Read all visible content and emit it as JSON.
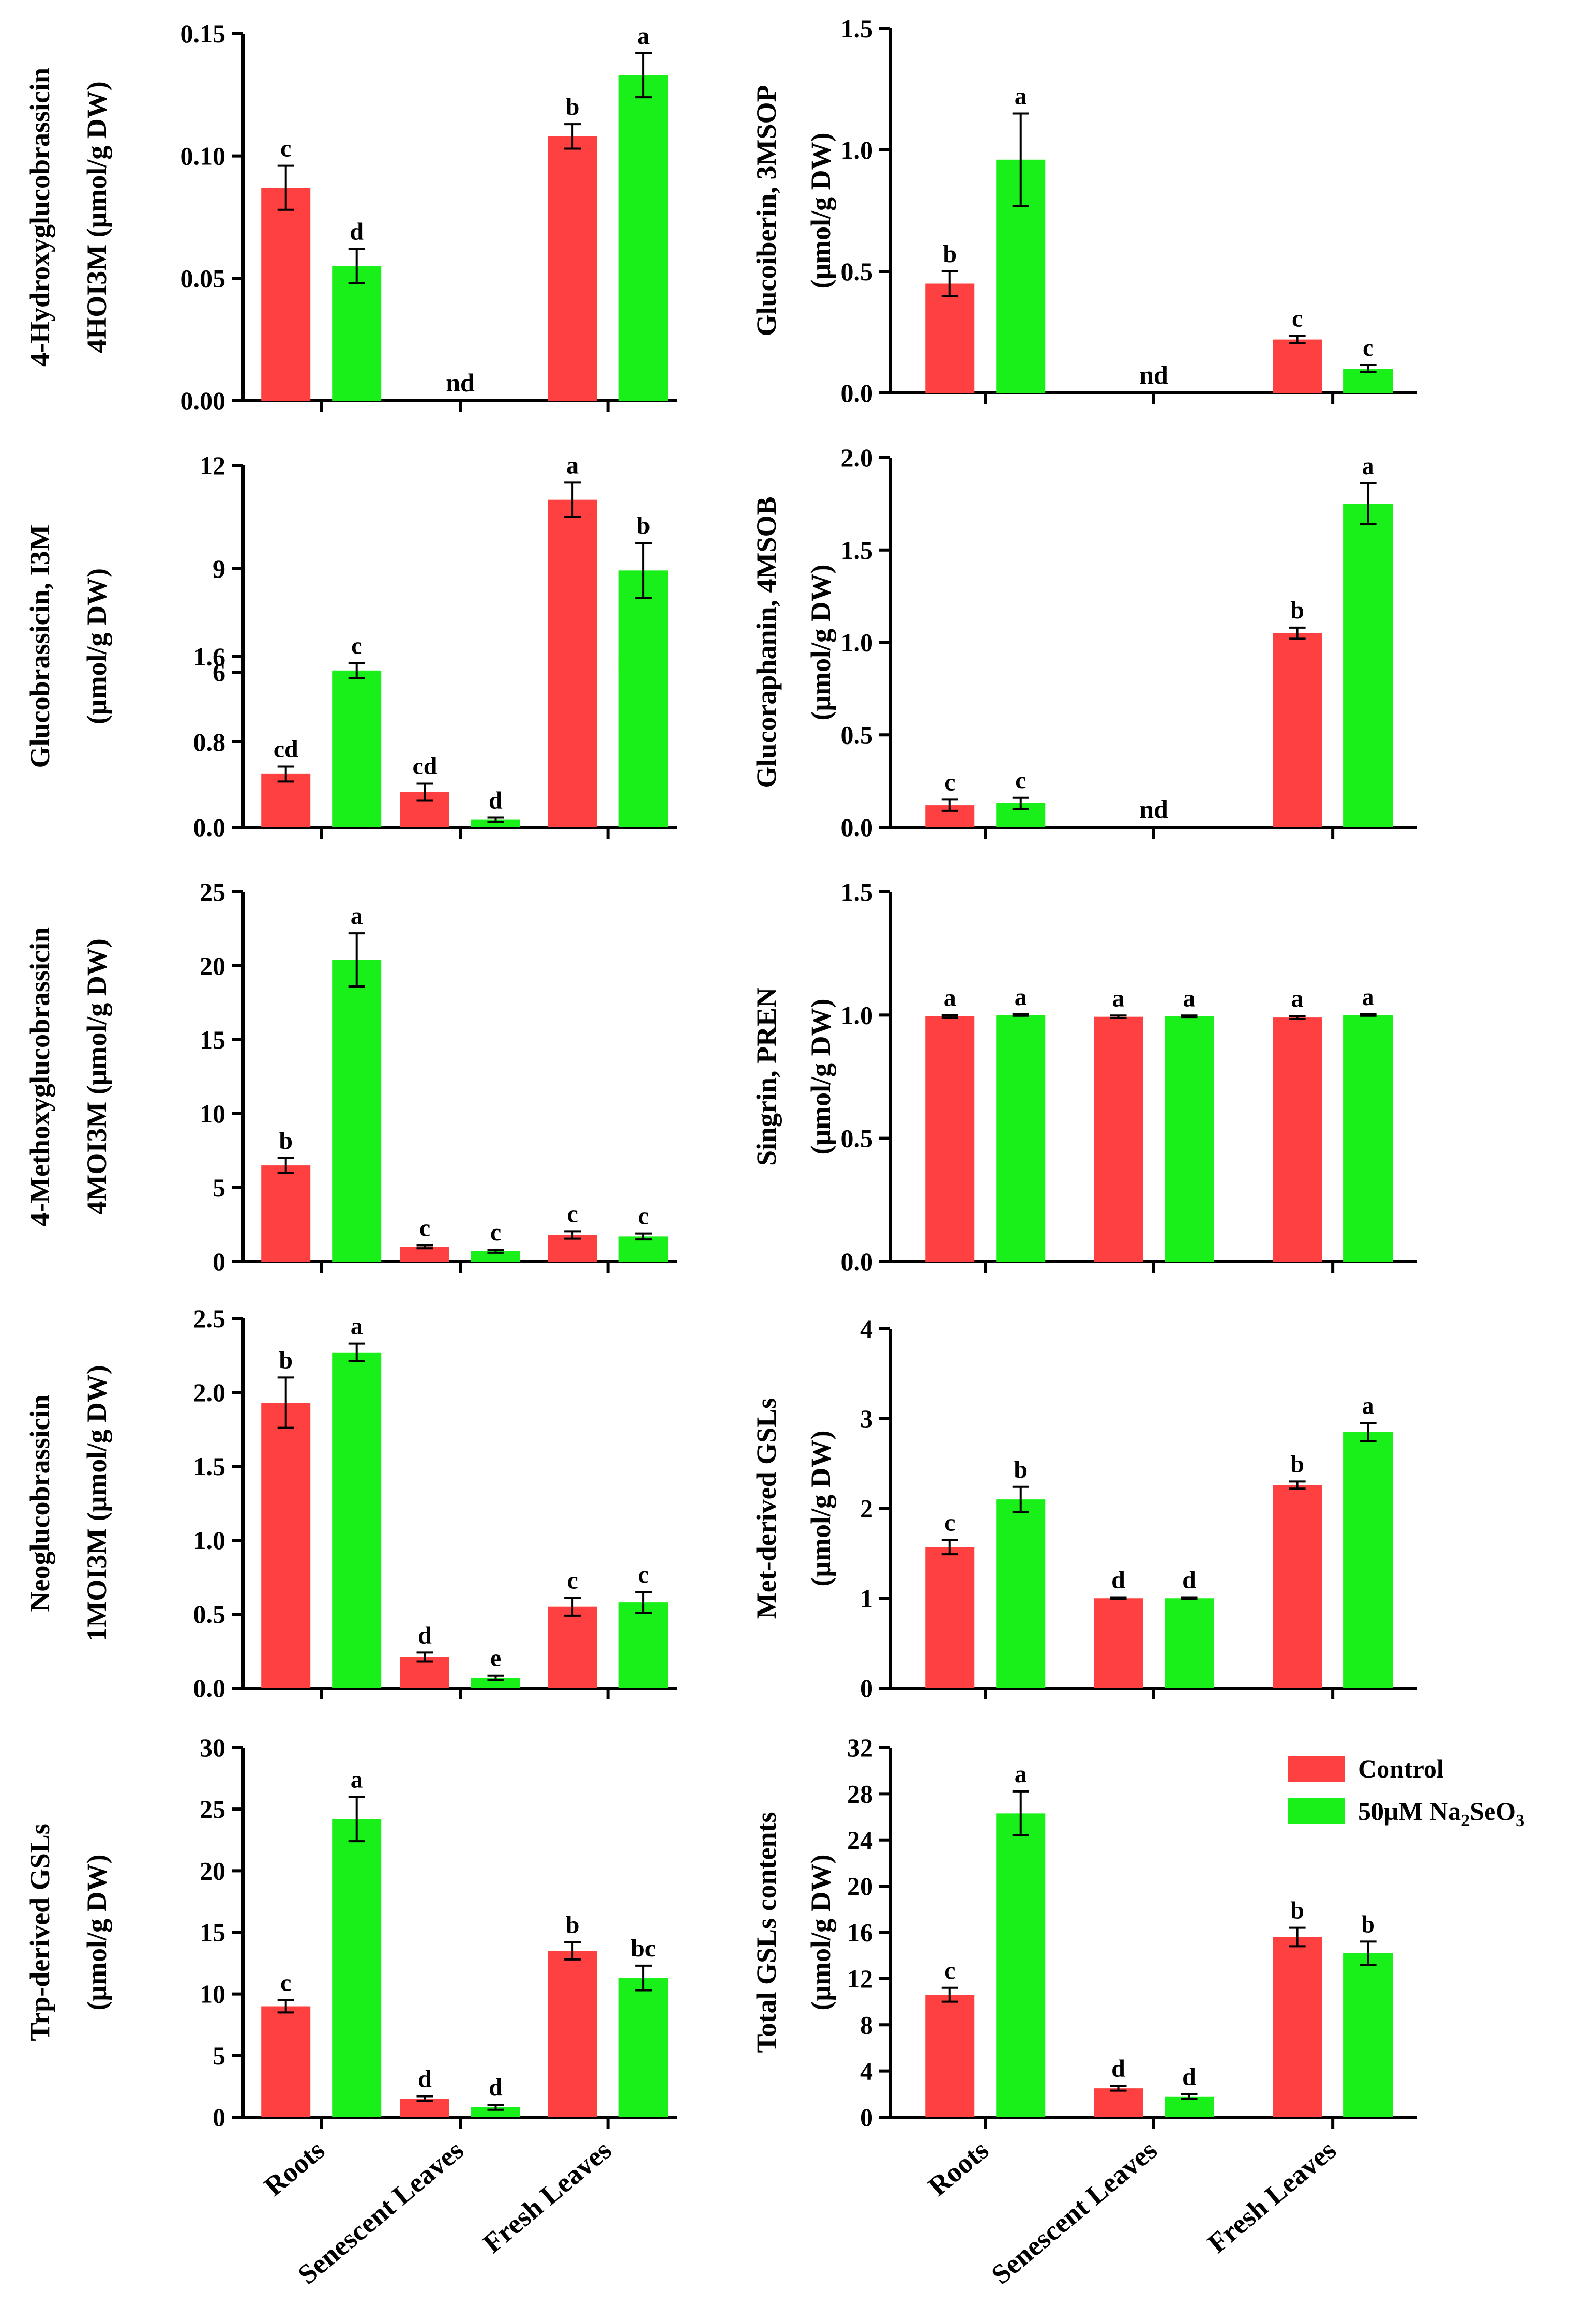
{
  "figure": {
    "categories": [
      "Roots",
      "Senescent Leaves",
      "Fresh Leaves"
    ],
    "legend": {
      "control": "Control",
      "treatment_prefix": "50μM Na",
      "treatment_sub1": "2",
      "treatment_mid": "SeO",
      "treatment_sub2": "3"
    },
    "colors": {
      "control": "#ff4040",
      "treatment": "#19ef19"
    }
  },
  "chart_data": [
    {
      "type": "bar",
      "id": "p1",
      "ylabel_lines": [
        "4-Hydroxyglucobrassicin",
        "4HOI3M (μmol/g DW)"
      ],
      "ylim": [
        0,
        0.15
      ],
      "yticks": [
        "0.00",
        "0.05",
        "0.10",
        "0.15"
      ],
      "series": [
        {
          "name": "Control",
          "values": [
            0.087,
            null,
            0.108
          ],
          "errors": [
            0.009,
            null,
            0.005
          ],
          "letters": [
            "c",
            "",
            "b"
          ]
        },
        {
          "name": "50μM Na2SeO3",
          "values": [
            0.055,
            null,
            0.133
          ],
          "errors": [
            0.007,
            null,
            0.009
          ],
          "letters": [
            "d",
            "",
            "a"
          ]
        }
      ],
      "annotations": [
        {
          "category": 1,
          "text": "nd"
        }
      ]
    },
    {
      "type": "bar",
      "id": "p2",
      "ylabel_lines": [
        "Glucoiberin, 3MSOP",
        "(μmol/g DW)"
      ],
      "ylim": [
        0,
        1.5
      ],
      "yticks": [
        "0.0",
        "0.5",
        "1.0",
        "1.5"
      ],
      "series": [
        {
          "name": "Control",
          "values": [
            0.45,
            null,
            0.22
          ],
          "errors": [
            0.05,
            null,
            0.015
          ],
          "letters": [
            "b",
            "",
            "c"
          ]
        },
        {
          "name": "50μM Na2SeO3",
          "values": [
            0.96,
            null,
            0.1
          ],
          "errors": [
            0.19,
            null,
            0.015
          ],
          "letters": [
            "a",
            "",
            "c"
          ]
        }
      ],
      "annotations": [
        {
          "category": 1,
          "text": "nd"
        }
      ]
    },
    {
      "type": "bar",
      "id": "p3",
      "broken_axis": true,
      "ylabel_lines": [
        "Glucobrassicin, I3M",
        "(μmol/g DW)"
      ],
      "ylim_lower": [
        0,
        1.6
      ],
      "ylim_upper": [
        6,
        12
      ],
      "yticks": [
        "0.0",
        "0.8",
        "1.6",
        "6",
        "9",
        "12"
      ],
      "series": [
        {
          "name": "Control",
          "values": [
            0.5,
            0.33,
            11.0
          ],
          "errors": [
            0.07,
            0.08,
            0.5
          ],
          "letters": [
            "cd",
            "cd",
            "a"
          ]
        },
        {
          "name": "50μM Na2SeO3",
          "values": [
            1.47,
            0.07,
            8.95
          ],
          "errors": [
            0.07,
            0.02,
            0.8
          ],
          "letters": [
            "c",
            "d",
            "b"
          ]
        }
      ]
    },
    {
      "type": "bar",
      "id": "p4",
      "ylabel_lines": [
        "Glucoraphanin, 4MSOB",
        "(μmol/g DW)"
      ],
      "ylim": [
        0,
        2.0
      ],
      "yticks": [
        "0.0",
        "0.5",
        "1.0",
        "1.5",
        "2.0"
      ],
      "series": [
        {
          "name": "Control",
          "values": [
            0.12,
            null,
            1.05
          ],
          "errors": [
            0.03,
            null,
            0.03
          ],
          "letters": [
            "c",
            "",
            "b"
          ]
        },
        {
          "name": "50μM Na2SeO3",
          "values": [
            0.13,
            null,
            1.75
          ],
          "errors": [
            0.03,
            null,
            0.11
          ],
          "letters": [
            "c",
            "",
            "a"
          ]
        }
      ],
      "annotations": [
        {
          "category": 1,
          "text": "nd"
        }
      ]
    },
    {
      "type": "bar",
      "id": "p5",
      "ylabel_lines": [
        "4-Methoxyglucobrassicin",
        "4MOI3M (μmol/g DW)"
      ],
      "ylim": [
        0,
        25
      ],
      "yticks": [
        "0",
        "5",
        "10",
        "15",
        "20",
        "25"
      ],
      "series": [
        {
          "name": "Control",
          "values": [
            6.5,
            1.0,
            1.8
          ],
          "errors": [
            0.5,
            0.1,
            0.25
          ],
          "letters": [
            "b",
            "c",
            "c"
          ]
        },
        {
          "name": "50μM Na2SeO3",
          "values": [
            20.4,
            0.7,
            1.7
          ],
          "errors": [
            1.8,
            0.1,
            0.2
          ],
          "letters": [
            "a",
            "c",
            "c"
          ]
        }
      ]
    },
    {
      "type": "bar",
      "id": "p6",
      "ylabel_lines": [
        "Singrin, PREN",
        "(μmol/g DW)"
      ],
      "ylim": [
        0,
        1.5
      ],
      "yticks": [
        "0.0",
        "0.5",
        "1.0",
        "1.5"
      ],
      "series": [
        {
          "name": "Control",
          "values": [
            0.995,
            0.993,
            0.99
          ],
          "errors": [
            0.005,
            0.005,
            0.006
          ],
          "letters": [
            "a",
            "a",
            "a"
          ]
        },
        {
          "name": "50μM Na2SeO3",
          "values": [
            1.0,
            0.995,
            1.0
          ],
          "errors": [
            0.003,
            0.003,
            0.003
          ],
          "letters": [
            "a",
            "a",
            "a"
          ]
        }
      ]
    },
    {
      "type": "bar",
      "id": "p7",
      "ylabel_lines": [
        "Neoglucobrassicin",
        "1MOI3M (μmol/g DW)"
      ],
      "ylim": [
        0,
        2.5
      ],
      "yticks": [
        "0.0",
        "0.5",
        "1.0",
        "1.5",
        "2.0",
        "2.5"
      ],
      "series": [
        {
          "name": "Control",
          "values": [
            1.93,
            0.21,
            0.55
          ],
          "errors": [
            0.17,
            0.03,
            0.06
          ],
          "letters": [
            "b",
            "d",
            "c"
          ]
        },
        {
          "name": "50μM Na2SeO3",
          "values": [
            2.27,
            0.07,
            0.58
          ],
          "errors": [
            0.06,
            0.015,
            0.07
          ],
          "letters": [
            "a",
            "e",
            "c"
          ]
        }
      ]
    },
    {
      "type": "bar",
      "id": "p8",
      "ylabel_lines": [
        "Met-derived GSLs",
        "(μmol/g DW)"
      ],
      "ylim": [
        0,
        4
      ],
      "yticks": [
        "0",
        "1",
        "2",
        "3",
        "4"
      ],
      "series": [
        {
          "name": "Control",
          "values": [
            1.57,
            1.0,
            2.26
          ],
          "errors": [
            0.08,
            0.01,
            0.04
          ],
          "letters": [
            "c",
            "d",
            "b"
          ]
        },
        {
          "name": "50μM Na2SeO3",
          "values": [
            2.1,
            1.0,
            2.85
          ],
          "errors": [
            0.14,
            0.01,
            0.1
          ],
          "letters": [
            "b",
            "d",
            "a"
          ]
        }
      ]
    },
    {
      "type": "bar",
      "id": "p9",
      "ylabel_lines": [
        "Trp-derived GSLs",
        "(μmol/g DW)"
      ],
      "ylim": [
        0,
        30
      ],
      "yticks": [
        "0",
        "5",
        "10",
        "15",
        "20",
        "25",
        "30"
      ],
      "series": [
        {
          "name": "Control",
          "values": [
            9.0,
            1.5,
            13.5
          ],
          "errors": [
            0.5,
            0.2,
            0.7
          ],
          "letters": [
            "c",
            "d",
            "b"
          ]
        },
        {
          "name": "50μM Na2SeO3",
          "values": [
            24.2,
            0.8,
            11.3
          ],
          "errors": [
            1.8,
            0.2,
            1.0
          ],
          "letters": [
            "a",
            "d",
            "bc"
          ]
        }
      ]
    },
    {
      "type": "bar",
      "id": "p10",
      "ylabel_lines": [
        "Total GSLs contents",
        "(μmol/g DW)"
      ],
      "ylim": [
        0,
        32
      ],
      "yticks": [
        "0",
        "4",
        "8",
        "12",
        "16",
        "20",
        "24",
        "28",
        "32"
      ],
      "series": [
        {
          "name": "Control",
          "values": [
            10.6,
            2.5,
            15.6
          ],
          "errors": [
            0.6,
            0.2,
            0.8
          ],
          "letters": [
            "c",
            "d",
            "b"
          ]
        },
        {
          "name": "50μM Na2SeO3",
          "values": [
            26.3,
            1.8,
            14.2
          ],
          "errors": [
            1.9,
            0.2,
            1.0
          ],
          "letters": [
            "a",
            "d",
            "b"
          ]
        }
      ]
    }
  ]
}
